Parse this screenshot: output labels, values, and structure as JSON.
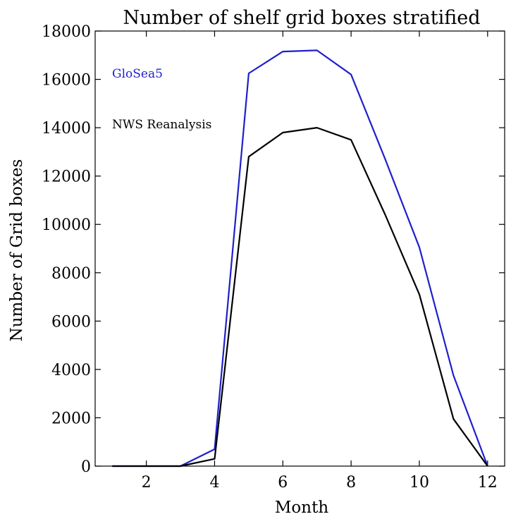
{
  "chart_data": {
    "type": "line",
    "title": "Number of shelf grid boxes stratified",
    "xlabel": "Month",
    "ylabel": "Number of Grid boxes",
    "xlim": [
      0.5,
      12.5
    ],
    "ylim": [
      0,
      18000
    ],
    "xticks": [
      2,
      4,
      6,
      8,
      10,
      12
    ],
    "yticks": [
      0,
      2000,
      4000,
      6000,
      8000,
      10000,
      12000,
      14000,
      16000,
      18000
    ],
    "xtick_labels": [
      "2",
      "4",
      "6",
      "8",
      "10",
      "12"
    ],
    "ytick_labels": [
      "0",
      "2000",
      "4000",
      "6000",
      "8000",
      "10000",
      "12000",
      "14000",
      "16000",
      "18000"
    ],
    "grid": false,
    "legend_placement": "top-left",
    "x": [
      1,
      2,
      3,
      4,
      5,
      6,
      7,
      8,
      9,
      10,
      11,
      12
    ],
    "series": [
      {
        "name": "GloSea5",
        "color": "#1f1fcc",
        "values": [
          0,
          0,
          0,
          700,
          16250,
          17150,
          17200,
          16200,
          12700,
          9050,
          3750,
          0
        ]
      },
      {
        "name": "NWS Reanalysis",
        "color": "#000000",
        "values": [
          0,
          0,
          0,
          300,
          12800,
          13800,
          14000,
          13500,
          10400,
          7100,
          1950,
          0
        ]
      }
    ]
  }
}
